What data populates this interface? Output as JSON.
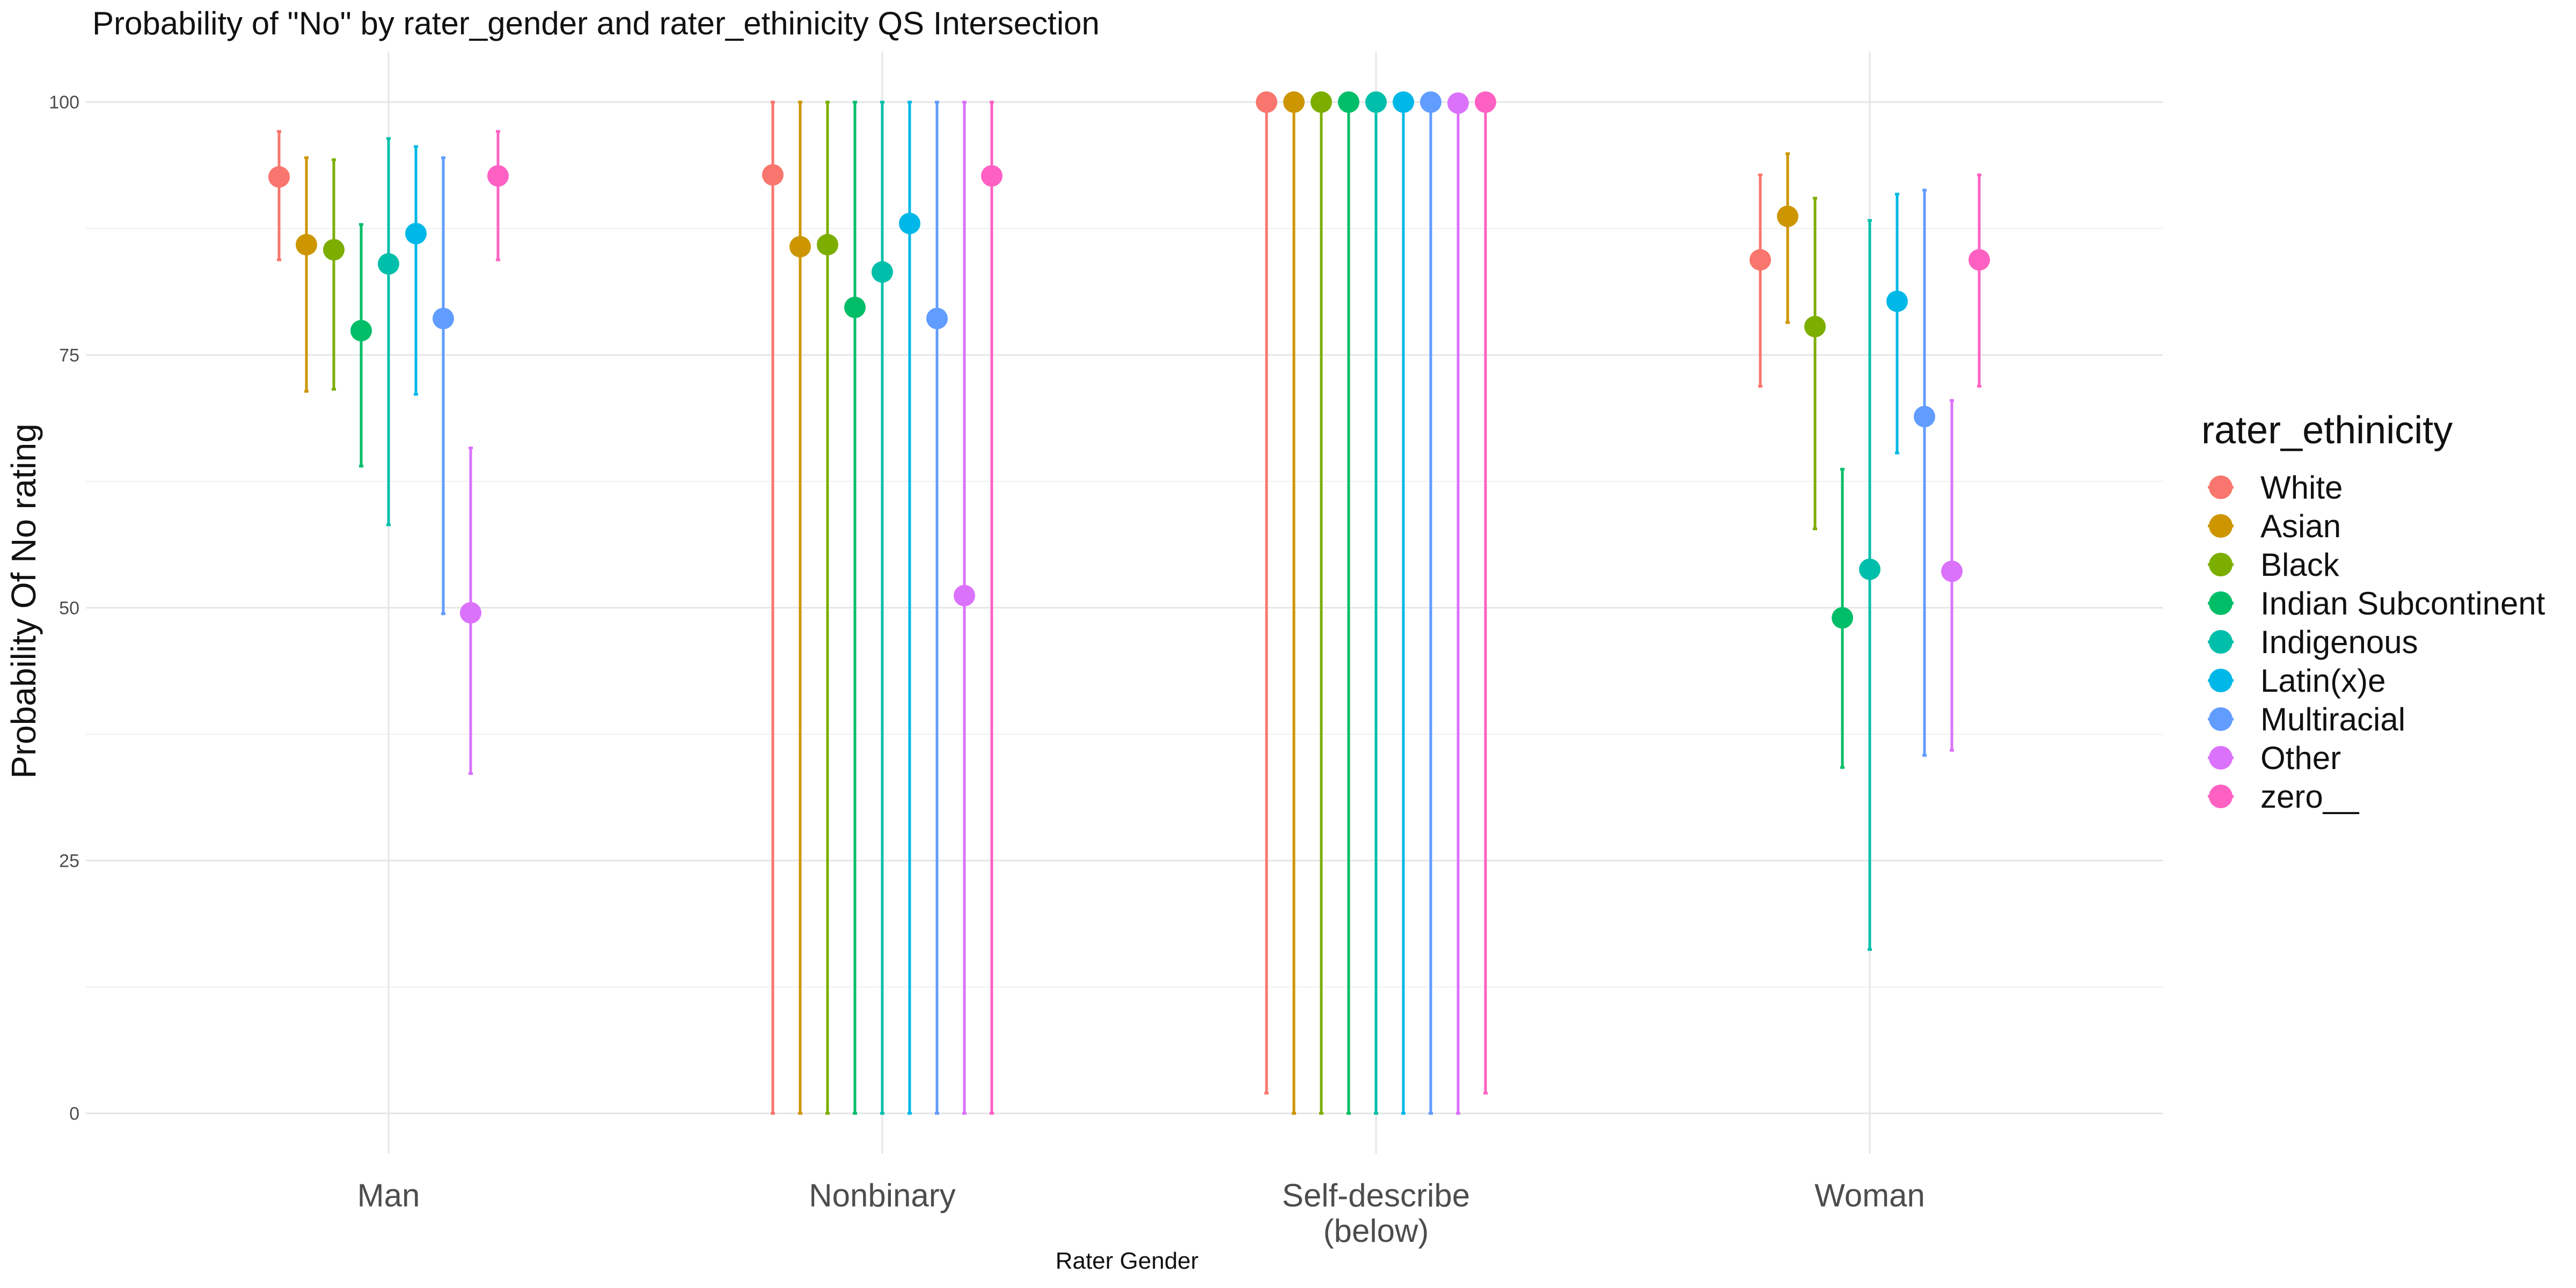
{
  "chart_data": {
    "type": "scatter",
    "subtype": "point-with-errorbars",
    "title": "Probability of \"No\" by rater_gender and  rater_ethinicity  QS Intersection",
    "xlabel": "Rater Gender",
    "ylabel": "Probability Of No rating",
    "ylim": [
      -4,
      105
    ],
    "y_ticks": [
      0,
      25,
      50,
      75,
      100
    ],
    "grid": true,
    "legend_position": "right",
    "legend_title": "rater_ethinicity",
    "categories": [
      "Man",
      "Nonbinary",
      "Self-describe\n(below)",
      "Woman"
    ],
    "series": [
      {
        "name": "White",
        "color": "#F8766D",
        "values": [
          92.6,
          92.8,
          100.0,
          84.4
        ],
        "lower": [
          84.4,
          0.0,
          2.0,
          71.9
        ],
        "upper": [
          97.1,
          100.0,
          100.0,
          92.8
        ]
      },
      {
        "name": "Asian",
        "color": "#CD9600",
        "values": [
          85.9,
          85.7,
          100.0,
          88.7
        ],
        "lower": [
          71.4,
          0.0,
          0.0,
          78.2
        ],
        "upper": [
          94.5,
          100.0,
          100.0,
          94.9
        ]
      },
      {
        "name": "Black",
        "color": "#7CAE00",
        "values": [
          85.4,
          85.9,
          100.0,
          77.8
        ],
        "lower": [
          71.6,
          0.0,
          0.0,
          57.8
        ],
        "upper": [
          94.3,
          100.0,
          100.0,
          90.5
        ]
      },
      {
        "name": "Indian Subcontinent",
        "color": "#00BE67",
        "values": [
          77.4,
          79.7,
          100.0,
          49.0
        ],
        "lower": [
          64.0,
          0.0,
          0.0,
          34.2
        ],
        "upper": [
          87.9,
          100.0,
          100.0,
          63.7
        ]
      },
      {
        "name": "Indigenous",
        "color": "#00BFAA",
        "values": [
          84.0,
          83.2,
          100.0,
          53.8
        ],
        "lower": [
          58.2,
          0.0,
          0.0,
          16.2
        ],
        "upper": [
          96.4,
          100.0,
          100.0,
          88.3
        ]
      },
      {
        "name": "Latin(x)e",
        "color": "#00B8E7",
        "values": [
          87.0,
          88.0,
          100.0,
          80.3
        ],
        "lower": [
          71.1,
          0.0,
          0.0,
          65.3
        ],
        "upper": [
          95.6,
          100.0,
          100.0,
          90.9
        ]
      },
      {
        "name": "Multiracial",
        "color": "#619CFF",
        "values": [
          78.6,
          78.6,
          100.0,
          68.9
        ],
        "lower": [
          49.4,
          0.0,
          0.0,
          35.4
        ],
        "upper": [
          94.5,
          100.0,
          100.0,
          91.3
        ]
      },
      {
        "name": "Other",
        "color": "#DB72FB",
        "values": [
          49.5,
          51.2,
          99.9,
          53.6
        ],
        "lower": [
          33.6,
          0.0,
          0.0,
          35.9
        ],
        "upper": [
          65.8,
          100.0,
          100.0,
          70.5
        ]
      },
      {
        "name": "zero__",
        "color": "#FF61C3",
        "values": [
          92.7,
          92.7,
          100.0,
          84.4
        ],
        "lower": [
          84.4,
          0.0,
          2.0,
          71.9
        ],
        "upper": [
          97.1,
          100.0,
          100.0,
          92.8
        ]
      }
    ]
  }
}
